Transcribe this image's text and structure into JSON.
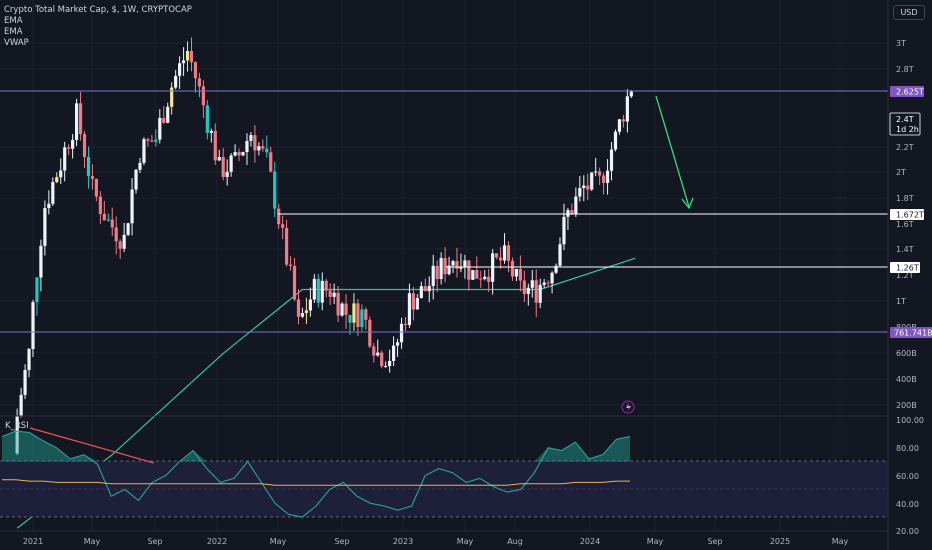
{
  "header": {
    "symbol_title": "Crypto Total Market Cap, $, 1W, CRYPTOCAP",
    "indicators": [
      "EMA",
      "EMA",
      "VWAP"
    ],
    "currency": "USD"
  },
  "price_tags": {
    "resistance_top": "2.625T",
    "current_price": "2.4T",
    "countdown": "1d 2h",
    "support_mid": "1.672T",
    "support_low": "1.26T",
    "bottom_line": "761.741B"
  },
  "rsi_panel": {
    "label": "K_RSI"
  },
  "colors": {
    "background": "#131722",
    "up_candle": "#f0f3fa",
    "down_candle": "#ef7b86",
    "teal_candle": "#26c6c0",
    "yellow_candle": "#f7e98e",
    "ema_line": "#2ac9a0",
    "horizontal_purple": "#7e74c9",
    "horizontal_white": "#ffffff",
    "arrow": "#33e07a",
    "rsi_line": "#26a69a",
    "rsi_fill": "#26a69a",
    "rsi_signal": "#e6b84c",
    "rsi_band": "#1e1f3a",
    "trendline_red": "#ef5350",
    "tag_purple": "#7e57c2",
    "tag_white": "#ffffff"
  },
  "chart_data": [
    {
      "type": "candlestick",
      "title": "Crypto Total Market Cap, $, 1W, CRYPTOCAP",
      "y_scale": "log",
      "y_ticks": [
        "3T",
        "2.8T",
        "2.625T",
        "2.4T",
        "2.2T",
        "2T",
        "1.8T",
        "1.672T",
        "1.6T",
        "1.4T",
        "1.26T",
        "1.2T",
        "1T",
        "800B",
        "761.741B",
        "600B",
        "400B",
        "200B"
      ],
      "x_ticks": [
        "2021",
        "May",
        "Sep",
        "2022",
        "May",
        "Sep",
        "2023",
        "May",
        "Aug",
        "2024",
        "May",
        "Sep",
        "2025",
        "May"
      ],
      "horizontal_levels": [
        {
          "value": "2.625T",
          "color": "purple"
        },
        {
          "value": "1.672T",
          "color": "white"
        },
        {
          "value": "1.26T",
          "color": "white"
        },
        {
          "value": "761.741B",
          "color": "purple"
        }
      ],
      "close_path": [
        {
          "date": "2020-12",
          "close": 0.55
        },
        {
          "date": "2021-01",
          "close": 0.8
        },
        {
          "date": "2021-02",
          "close": 1.5
        },
        {
          "date": "2021-03",
          "close": 1.8
        },
        {
          "date": "2021-04",
          "close": 2.2
        },
        {
          "date": "2021-05",
          "close": 1.6
        },
        {
          "date": "2021-06",
          "close": 1.4
        },
        {
          "date": "2021-07",
          "close": 1.3
        },
        {
          "date": "2021-08",
          "close": 1.9
        },
        {
          "date": "2021-09",
          "close": 2.0
        },
        {
          "date": "2021-10",
          "close": 2.5
        },
        {
          "date": "2021-11",
          "close": 2.9
        },
        {
          "date": "2021-12",
          "close": 2.3
        },
        {
          "date": "2022-01",
          "close": 1.75
        },
        {
          "date": "2022-02",
          "close": 1.8
        },
        {
          "date": "2022-03",
          "close": 2.05
        },
        {
          "date": "2022-04",
          "close": 1.8
        },
        {
          "date": "2022-05",
          "close": 1.3
        },
        {
          "date": "2022-06",
          "close": 0.9
        },
        {
          "date": "2022-07",
          "close": 1.05
        },
        {
          "date": "2022-08",
          "close": 1.05
        },
        {
          "date": "2022-09",
          "close": 0.95
        },
        {
          "date": "2022-10",
          "close": 0.95
        },
        {
          "date": "2022-11",
          "close": 0.8
        },
        {
          "date": "2022-12",
          "close": 0.79
        },
        {
          "date": "2023-01",
          "close": 1.0
        },
        {
          "date": "2023-02",
          "close": 1.05
        },
        {
          "date": "2023-03",
          "close": 1.15
        },
        {
          "date": "2023-04",
          "close": 1.22
        },
        {
          "date": "2023-05",
          "close": 1.12
        },
        {
          "date": "2023-06",
          "close": 1.15
        },
        {
          "date": "2023-07",
          "close": 1.2
        },
        {
          "date": "2023-08",
          "close": 1.05
        },
        {
          "date": "2023-09",
          "close": 1.05
        },
        {
          "date": "2023-10",
          "close": 1.15
        },
        {
          "date": "2023-11",
          "close": 1.45
        },
        {
          "date": "2023-12",
          "close": 1.62
        },
        {
          "date": "2024-01",
          "close": 1.65
        },
        {
          "date": "2024-02",
          "close": 2.0
        },
        {
          "date": "2024-03",
          "close": 2.5
        }
      ],
      "ema_path": [
        {
          "date": "2020-12",
          "value": 0.38
        },
        {
          "date": "2021-06",
          "value": 0.52
        },
        {
          "date": "2022-01",
          "value": 0.8
        },
        {
          "date": "2022-06",
          "value": 1.05
        },
        {
          "date": "2023-01",
          "value": 1.05
        },
        {
          "date": "2023-09",
          "value": 1.05
        },
        {
          "date": "2024-03",
          "value": 1.2
        }
      ],
      "annotation": {
        "type": "arrow",
        "direction": "down",
        "color": "green"
      }
    },
    {
      "type": "line",
      "title": "K_RSI",
      "y_ticks": [
        "100.00",
        "80.00",
        "60.00",
        "40.00",
        "20.00"
      ],
      "bands": [
        70,
        30
      ],
      "series": [
        {
          "values": [
            88,
            92,
            91,
            85,
            80,
            72,
            75,
            68,
            45,
            50,
            42,
            55,
            60,
            70,
            78,
            65,
            55,
            58,
            70,
            55,
            40,
            32,
            30,
            38,
            50,
            55,
            45,
            40,
            38,
            35,
            38,
            60,
            65,
            62,
            55,
            58,
            52,
            48,
            50,
            62,
            80,
            78,
            84,
            72,
            75,
            86,
            88
          ]
        },
        {
          "values": [
            57,
            57,
            56,
            56,
            55,
            55,
            55,
            55,
            54,
            54,
            54,
            54,
            54,
            54,
            54,
            54,
            54,
            54,
            54,
            54,
            53,
            53,
            53,
            53,
            53,
            53,
            53,
            53,
            53,
            53,
            53,
            53,
            53,
            53,
            53,
            53,
            53,
            53,
            54,
            54,
            54,
            54,
            55,
            55,
            55,
            56,
            56
          ]
        }
      ]
    }
  ]
}
